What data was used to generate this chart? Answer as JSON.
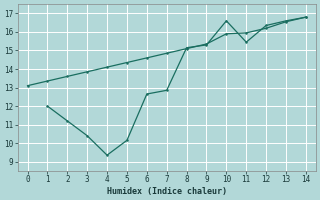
{
  "xlabel": "Humidex (Indice chaleur)",
  "bg_color": "#b2d8d8",
  "grid_color": "#c8e8e8",
  "line_color": "#1a6e60",
  "ylim": [
    8.5,
    17.5
  ],
  "xlim": [
    -0.5,
    14.5
  ],
  "yticks": [
    9,
    10,
    11,
    12,
    13,
    14,
    15,
    16,
    17
  ],
  "xticks": [
    0,
    1,
    2,
    3,
    4,
    5,
    6,
    7,
    8,
    9,
    10,
    11,
    12,
    13,
    14
  ],
  "line1_x": [
    0,
    1,
    2,
    3,
    4,
    5,
    6,
    7,
    8,
    9,
    10,
    11,
    12,
    13,
    14
  ],
  "line1_y": [
    13.1,
    13.35,
    13.6,
    13.85,
    14.1,
    14.35,
    14.6,
    14.85,
    15.1,
    15.35,
    15.9,
    15.95,
    16.2,
    16.55,
    16.8
  ],
  "line2_x": [
    1,
    2,
    3,
    4,
    5,
    6,
    7,
    8,
    9,
    10,
    11,
    12,
    13,
    14
  ],
  "line2_y": [
    12.0,
    11.2,
    10.4,
    9.35,
    10.15,
    12.65,
    12.85,
    15.15,
    15.3,
    16.6,
    15.45,
    16.35,
    16.6,
    16.8
  ]
}
